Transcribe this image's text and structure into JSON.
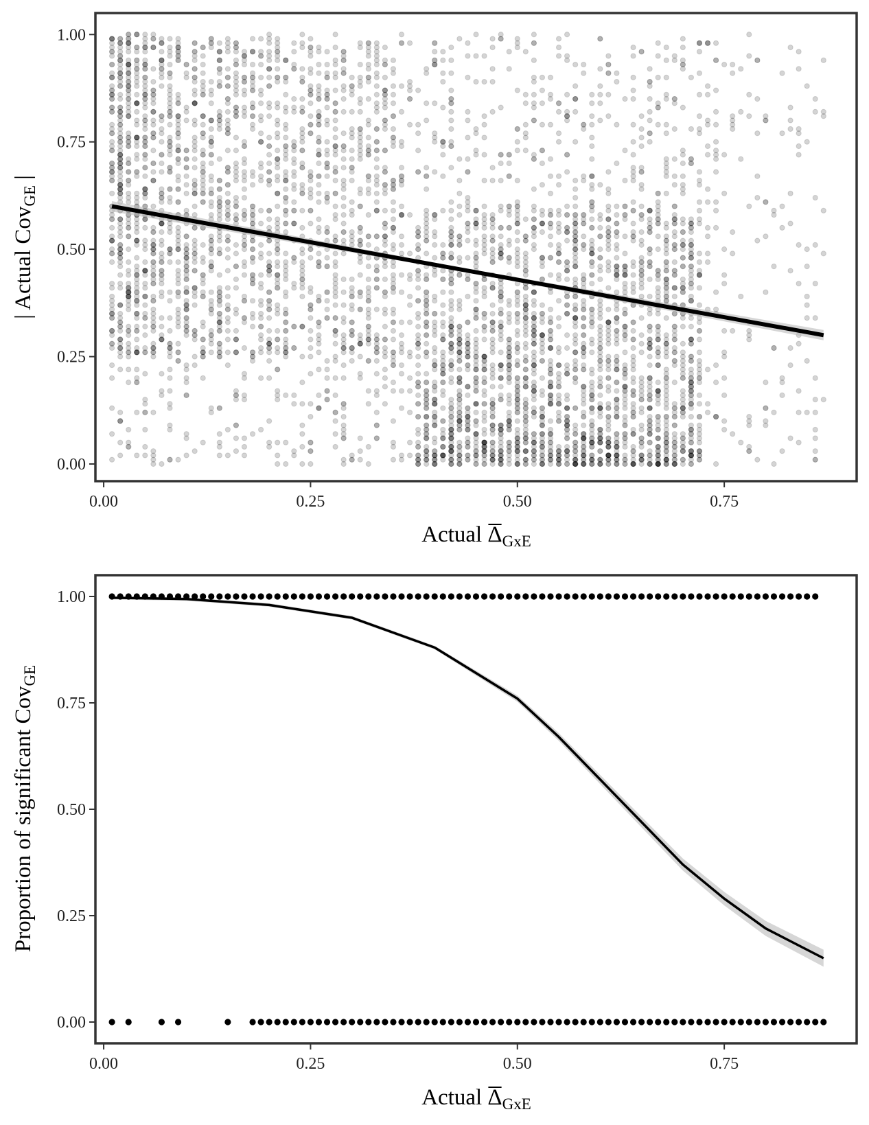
{
  "chart_data": [
    {
      "type": "scatter",
      "title": "",
      "xlabel": {
        "prefix": "Actual ",
        "symbol": "Δ",
        "subscript": "GxE"
      },
      "ylabel": {
        "prefix": "| Actual Cov",
        "subscript": "GE",
        "suffix": " |"
      },
      "xlim": [
        -0.01,
        0.91
      ],
      "ylim": [
        -0.04,
        1.05
      ],
      "x_ticks": [
        0.0,
        0.25,
        0.5,
        0.75
      ],
      "x_tick_labels": [
        "0.00",
        "0.25",
        "0.50",
        "0.75"
      ],
      "y_ticks": [
        0.0,
        0.25,
        0.5,
        0.75,
        1.0
      ],
      "y_tick_labels": [
        "0.00",
        "0.25",
        "0.50",
        "0.75",
        "1.00"
      ],
      "grid": false,
      "point_color": "#000000",
      "point_alpha": 0.17,
      "points_description": "thousands of simulated points on a 0.01 grid, x from 0.01 to 0.87, y from 0.00 to 1.00, densest near x 0.5-0.7 and low y",
      "fit": {
        "kind": "linear",
        "x": [
          0.01,
          0.87
        ],
        "y": [
          0.6,
          0.3
        ],
        "color": "#000000",
        "ribbon_color": "#bbbbbb"
      }
    },
    {
      "type": "scatter",
      "title": "",
      "xlabel": {
        "prefix": "Actual ",
        "symbol": "Δ",
        "subscript": "GxE"
      },
      "ylabel": {
        "prefix": "Proportion of significant Cov",
        "subscript": "GE",
        "suffix": ""
      },
      "xlim": [
        -0.01,
        0.91
      ],
      "ylim": [
        -0.05,
        1.05
      ],
      "x_ticks": [
        0.0,
        0.25,
        0.5,
        0.75
      ],
      "x_tick_labels": [
        "0.00",
        "0.25",
        "0.50",
        "0.75"
      ],
      "y_ticks": [
        0.0,
        0.25,
        0.5,
        0.75,
        1.0
      ],
      "y_tick_labels": [
        "0.00",
        "0.25",
        "0.50",
        "0.75",
        "1.00"
      ],
      "grid": false,
      "point_color": "#000000",
      "series": [
        {
          "y": 1.0,
          "x_start": 0.01,
          "x_end": 0.86,
          "step": 0.01,
          "x_extra": []
        },
        {
          "y": 0.0,
          "x_start": 0.18,
          "x_end": 0.87,
          "step": 0.01,
          "x_extra": [
            0.01,
            0.03,
            0.07,
            0.09,
            0.15
          ]
        }
      ],
      "fit": {
        "kind": "logistic",
        "x": [
          0.01,
          0.1,
          0.2,
          0.3,
          0.4,
          0.5,
          0.55,
          0.6,
          0.65,
          0.7,
          0.75,
          0.8,
          0.87
        ],
        "y": [
          0.997,
          0.994,
          0.98,
          0.95,
          0.88,
          0.76,
          0.67,
          0.57,
          0.47,
          0.37,
          0.29,
          0.22,
          0.15
        ],
        "color": "#000000",
        "ribbon_color": "#bbbbbb"
      }
    }
  ]
}
